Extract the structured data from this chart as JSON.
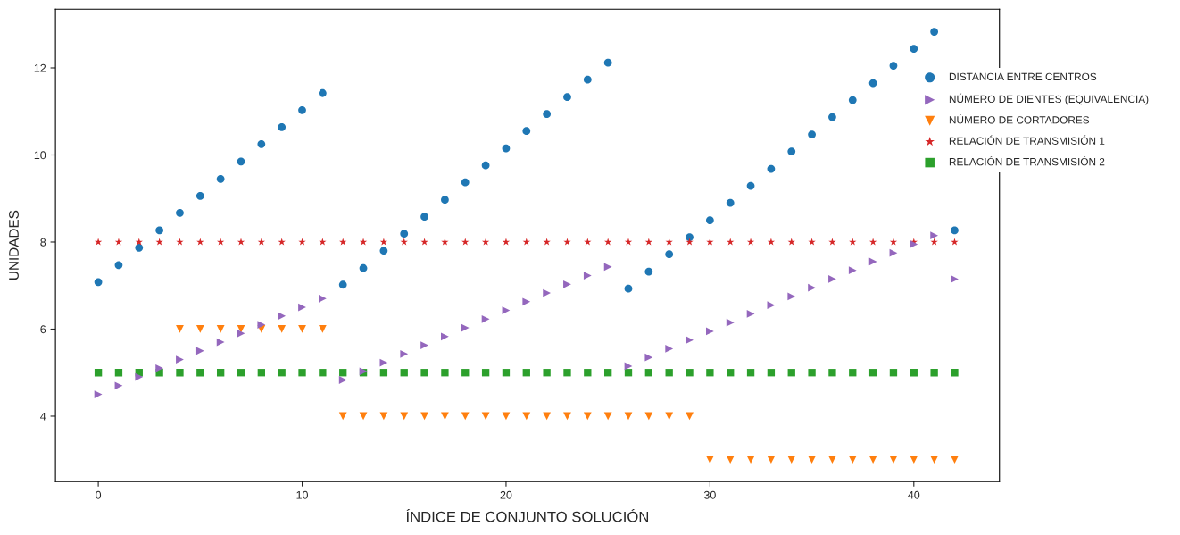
{
  "chart_data": {
    "type": "scatter",
    "xlabel": "ÍNDICE DE CONJUNTO SOLUCIÓN",
    "ylabel": "UNIDADES",
    "x": [
      0,
      1,
      2,
      3,
      4,
      5,
      6,
      7,
      8,
      9,
      10,
      11,
      12,
      13,
      14,
      15,
      16,
      17,
      18,
      19,
      20,
      21,
      22,
      23,
      24,
      25,
      26,
      27,
      28,
      29,
      30,
      31,
      32,
      33,
      34,
      35,
      36,
      37,
      38,
      39,
      40,
      41,
      42
    ],
    "series": [
      {
        "name": "DISTANCIA ENTRE CENTROS",
        "color": "#1f77b4",
        "marker": "circle",
        "values": [
          7.08,
          7.47,
          7.87,
          8.27,
          8.67,
          9.06,
          9.45,
          9.85,
          10.25,
          10.64,
          11.03,
          11.42,
          7.02,
          7.4,
          7.8,
          8.19,
          8.58,
          8.97,
          9.37,
          9.76,
          10.15,
          10.55,
          10.94,
          11.33,
          11.73,
          12.12,
          6.93,
          7.32,
          7.72,
          8.11,
          8.5,
          8.9,
          9.29,
          9.68,
          10.08,
          10.47,
          10.87,
          11.26,
          11.65,
          12.05,
          12.44,
          12.83,
          8.27
        ]
      },
      {
        "name": "NÚMERO DE DIENTES (EQUIVALENCIA)",
        "color": "#9467bd",
        "marker": "triangle_right",
        "values": [
          4.5,
          4.7,
          4.9,
          5.1,
          5.3,
          5.5,
          5.7,
          5.9,
          6.1,
          6.3,
          6.5,
          6.7,
          4.83,
          5.03,
          5.23,
          5.43,
          5.63,
          5.83,
          6.03,
          6.23,
          6.43,
          6.63,
          6.83,
          7.03,
          7.23,
          7.43,
          5.15,
          5.35,
          5.55,
          5.75,
          5.95,
          6.15,
          6.35,
          6.55,
          6.75,
          6.95,
          7.15,
          7.35,
          7.55,
          7.75,
          7.95,
          8.15,
          7.15
        ]
      },
      {
        "name": "NÚMERO DE CORTADORES",
        "color": "#ff7f0e",
        "marker": "triangle_down",
        "values": [
          null,
          null,
          null,
          null,
          6,
          6,
          6,
          6,
          6,
          6,
          6,
          6,
          4,
          4,
          4,
          4,
          4,
          4,
          4,
          4,
          4,
          4,
          4,
          4,
          4,
          4,
          4,
          4,
          4,
          4,
          3,
          3,
          3,
          3,
          3,
          3,
          3,
          3,
          3,
          3,
          3,
          3,
          3
        ]
      },
      {
        "name": "RELACIÓN DE TRANSMISIÓN 1",
        "color": "#d62728",
        "marker": "star",
        "values": [
          8,
          8,
          8,
          8,
          8,
          8,
          8,
          8,
          8,
          8,
          8,
          8,
          8,
          8,
          8,
          8,
          8,
          8,
          8,
          8,
          8,
          8,
          8,
          8,
          8,
          8,
          8,
          8,
          8,
          8,
          8,
          8,
          8,
          8,
          8,
          8,
          8,
          8,
          8,
          8,
          8,
          8,
          8
        ]
      },
      {
        "name": "RELACIÓN DE TRANSMISIÓN 2",
        "color": "#2ca02c",
        "marker": "square",
        "values": [
          5,
          5,
          5,
          5,
          5,
          5,
          5,
          5,
          5,
          5,
          5,
          5,
          5,
          5,
          5,
          5,
          5,
          5,
          5,
          5,
          5,
          5,
          5,
          5,
          5,
          5,
          5,
          5,
          5,
          5,
          5,
          5,
          5,
          5,
          5,
          5,
          5,
          5,
          5,
          5,
          5,
          5,
          5
        ]
      }
    ],
    "xlim": [
      -2.1,
      44.2
    ],
    "ylim": [
      2.5,
      13.35
    ],
    "xticks": [
      0,
      10,
      20,
      30,
      40
    ],
    "yticks": [
      4,
      6,
      8,
      10,
      12
    ],
    "grid": false,
    "legend": "right"
  }
}
